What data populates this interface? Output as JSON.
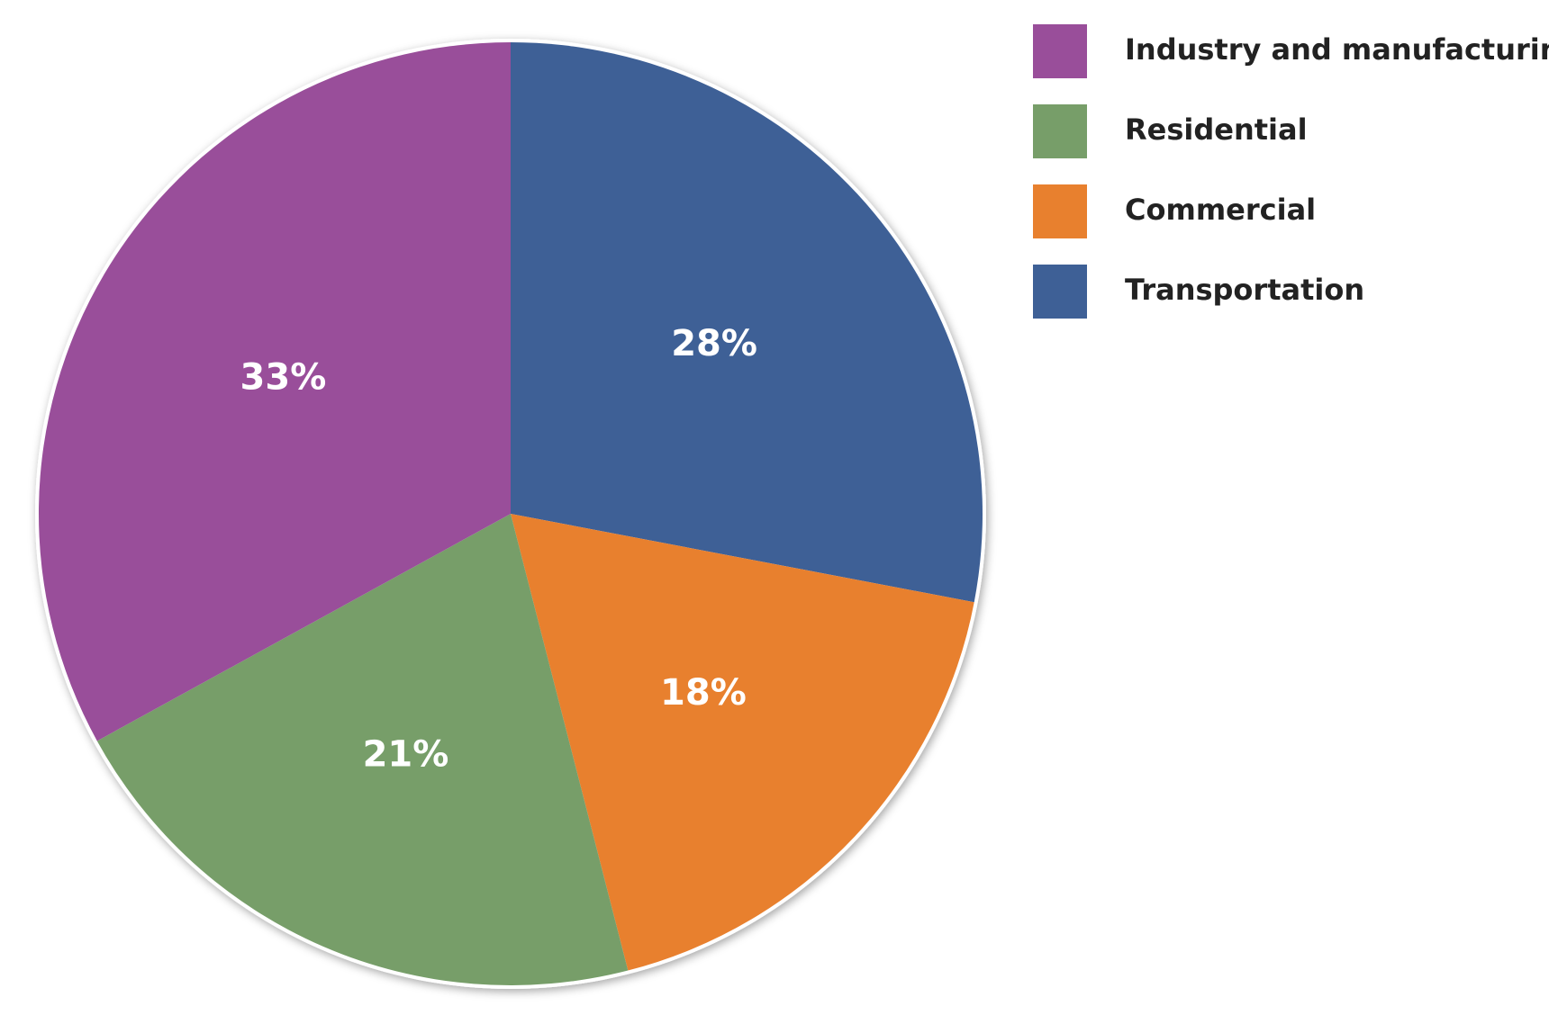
{
  "chart_data": {
    "type": "pie",
    "title": "",
    "start_angle_deg": 0,
    "direction": "clockwise",
    "legend_position": "top-right",
    "slices": [
      {
        "name": "Transportation",
        "value": 28,
        "label": "28%",
        "color": "#3e6096"
      },
      {
        "name": "Commercial",
        "value": 18,
        "label": "18%",
        "color": "#e8802e"
      },
      {
        "name": "Residential",
        "value": 21,
        "label": "21%",
        "color": "#779e69"
      },
      {
        "name": "Industry and manufacturing",
        "value": 33,
        "label": "33%",
        "color": "#994e9a"
      }
    ],
    "legend": [
      {
        "name": "Industry and manufacturing",
        "color": "#994e9a"
      },
      {
        "name": "Residential",
        "color": "#779e69"
      },
      {
        "name": "Commercial",
        "color": "#e8802e"
      },
      {
        "name": "Transportation",
        "color": "#3e6096"
      }
    ]
  }
}
